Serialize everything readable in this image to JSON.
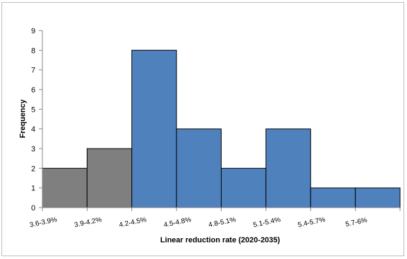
{
  "chart_data": {
    "type": "bar",
    "categories": [
      "3.6-3.9%",
      "3.9-4.2%",
      "4.2-4.5%",
      "4.5-4.8%",
      "4.8-5.1%",
      "5.1-5.4%",
      "5.4-5.7%",
      "5.7-6%"
    ],
    "values": [
      2,
      3,
      8,
      4,
      2,
      4,
      1,
      1
    ],
    "bar_colors": [
      "#7f7f7f",
      "#7f7f7f",
      "#4f81bd",
      "#4f81bd",
      "#4f81bd",
      "#4f81bd",
      "#4f81bd",
      "#4f81bd"
    ],
    "xlabel": "Linear reduction rate (2020-2035)",
    "ylabel": "Frequency",
    "ylim": [
      0,
      9
    ],
    "yticks": [
      0,
      1,
      2,
      3,
      4,
      5,
      6,
      7,
      8,
      9
    ],
    "grid": false,
    "legend": false
  },
  "colors": {
    "bar_edge": "#000000",
    "axis": "#868686",
    "text": "#000000"
  }
}
